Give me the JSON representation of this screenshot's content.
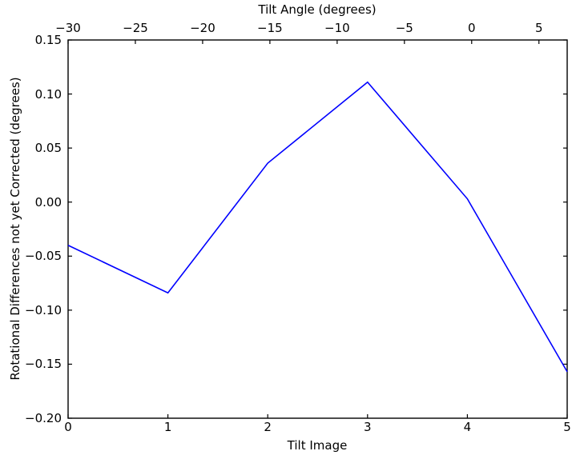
{
  "chart_data": {
    "type": "line",
    "title": "",
    "x": [
      0,
      1,
      2,
      3,
      4,
      5
    ],
    "series": [
      {
        "name": "rotational_differences",
        "color": "#0000ff",
        "y": [
          -0.04,
          -0.084,
          0.036,
          0.111,
          0.003,
          -0.157
        ]
      }
    ],
    "bottom_axis": {
      "label": "Tilt Image",
      "range": [
        0,
        5
      ],
      "ticks": [
        0,
        1,
        2,
        3,
        4,
        5
      ],
      "tick_labels": [
        "0",
        "1",
        "2",
        "3",
        "4",
        "5"
      ]
    },
    "top_axis": {
      "label": "Tilt Angle (degrees)",
      "range": [
        -30,
        7.1
      ],
      "ticks": [
        -30,
        -25,
        -20,
        -15,
        -10,
        -5,
        0,
        5
      ],
      "tick_labels": [
        "−30",
        "−25",
        "−20",
        "−15",
        "−10",
        "−5",
        "0",
        "5"
      ]
    },
    "left_axis": {
      "label": "Rotational Differences not yet Corrected (degrees)",
      "range": [
        -0.2,
        0.15
      ],
      "ticks": [
        0.15,
        0.1,
        0.05,
        0.0,
        -0.05,
        -0.1,
        -0.15,
        -0.2
      ],
      "tick_labels": [
        "0.15",
        "0.10",
        "0.05",
        "0.00",
        "−0.05",
        "−0.10",
        "−0.15",
        "−0.20"
      ]
    },
    "grid": false,
    "legend": null,
    "colors": {
      "line": "#0000ff",
      "axis": "#000000",
      "text": "#000000",
      "background": "#ffffff"
    }
  }
}
